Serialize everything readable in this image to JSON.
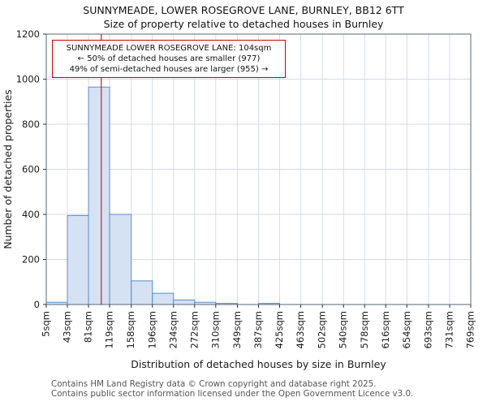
{
  "annotation": {
    "line1": "SUNNYMEADE LOWER ROSEGROVE LANE: 104sqm",
    "line2": "← 50% of detached houses are smaller (977)",
    "line3": "49% of semi-detached houses are larger (955) →"
  },
  "footer": {
    "line1": "Contains HM Land Registry data © Crown copyright and database right 2025.",
    "line2": "Contains public sector information licensed under the Open Government Licence v3.0."
  },
  "chart_data": {
    "type": "bar",
    "title": "SUNNYMEADE, LOWER ROSEGROVE LANE, BURNLEY, BB12 6TT",
    "subtitle": "Size of property relative to detached houses in Burnley",
    "xlabel": "Distribution of detached houses by size in Burnley",
    "ylabel": "Number of detached properties",
    "categories": [
      "5sqm",
      "43sqm",
      "81sqm",
      "119sqm",
      "158sqm",
      "196sqm",
      "234sqm",
      "272sqm",
      "310sqm",
      "349sqm",
      "387sqm",
      "425sqm",
      "463sqm",
      "502sqm",
      "540sqm",
      "578sqm",
      "616sqm",
      "654sqm",
      "693sqm",
      "731sqm",
      "769sqm"
    ],
    "edges": [
      5,
      43,
      81,
      119,
      158,
      196,
      234,
      272,
      310,
      349,
      387,
      425,
      463,
      502,
      540,
      578,
      616,
      654,
      693,
      731,
      769
    ],
    "values": [
      10,
      395,
      965,
      400,
      105,
      50,
      20,
      10,
      5,
      0,
      5,
      0,
      0,
      0,
      0,
      0,
      0,
      0,
      0,
      0
    ],
    "marker": {
      "label": "SUNNYMEADE LOWER ROSEGROVE LANE",
      "value": 104
    },
    "xlim": [
      5,
      769
    ],
    "ylim": [
      0,
      1200
    ],
    "yticks": [
      0,
      200,
      400,
      600,
      800,
      1000,
      1200
    ],
    "grid": true,
    "legend": "none",
    "colors": {
      "bar_fill": "#d4e2f4",
      "bar_edge": "#5b8ec4",
      "marker_line": "#c41f1f",
      "grid": "#d3dcea",
      "spine": "#5c6673",
      "annotation_border": "#cc0000"
    }
  }
}
